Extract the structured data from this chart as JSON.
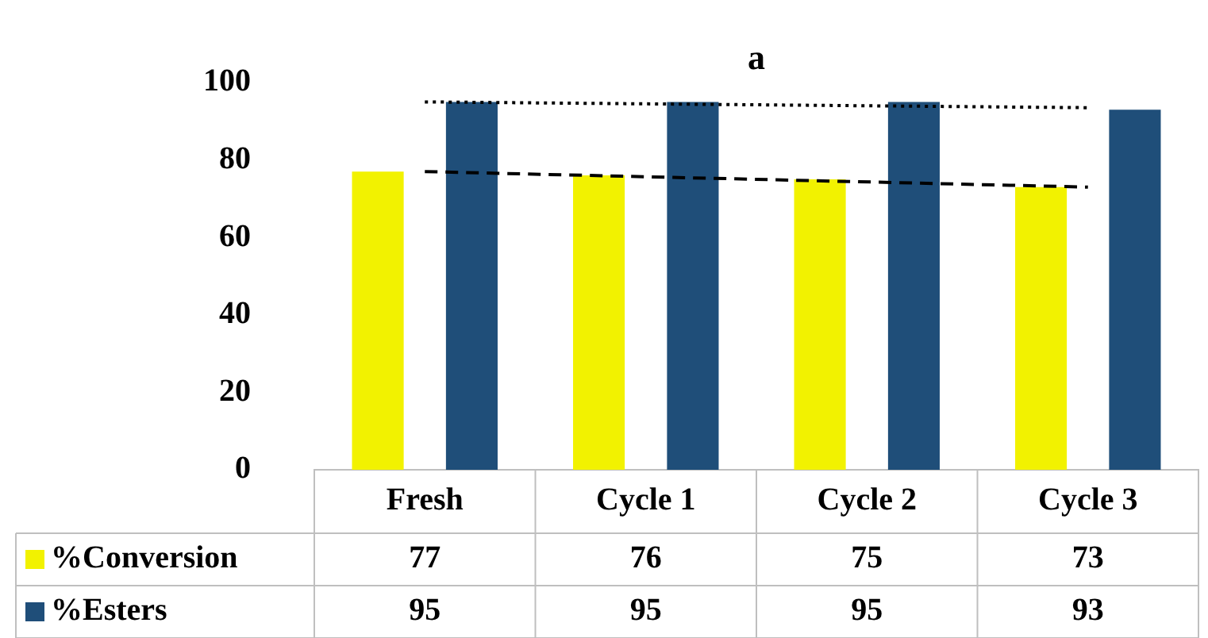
{
  "chart_data": {
    "type": "bar",
    "title": "a",
    "categories": [
      "Fresh",
      "Cycle 1",
      "Cycle 2",
      "Cycle 3"
    ],
    "series": [
      {
        "name": "%Conversion",
        "color": "#f2f200",
        "values": [
          77,
          76,
          75,
          73
        ],
        "value_labels": [
          "77",
          "76",
          "75",
          "73"
        ]
      },
      {
        "name": "%Esters",
        "color": "#1f4e79",
        "values": [
          95,
          95,
          95,
          93
        ],
        "value_labels": [
          "95",
          "95",
          "95",
          "93"
        ]
      },
      {
        "type": "line",
        "color": "#000000",
        "line_style": "dashed",
        "x": [
          "Fresh",
          "Cycle 3"
        ],
        "values": [
          77,
          73
        ]
      },
      {
        "type": "line",
        "color": "#000000",
        "line_style": "dotted",
        "x": [
          "Fresh",
          "Cycle 3"
        ],
        "values": [
          95,
          93.5
        ]
      }
    ],
    "ylim": [
      0,
      100
    ],
    "yticks": [
      0,
      20,
      40,
      60,
      80,
      100
    ],
    "grid": false,
    "legend": "bottom left"
  }
}
